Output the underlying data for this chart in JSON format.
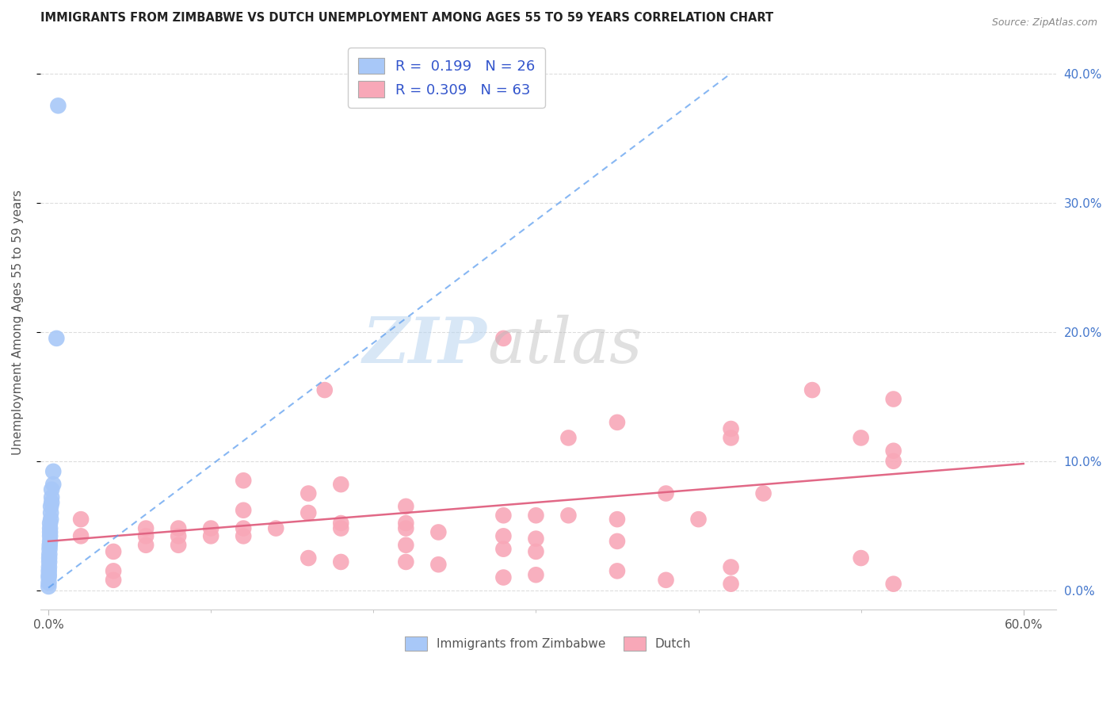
{
  "title": "IMMIGRANTS FROM ZIMBABWE VS DUTCH UNEMPLOYMENT AMONG AGES 55 TO 59 YEARS CORRELATION CHART",
  "source": "Source: ZipAtlas.com",
  "ylabel": "Unemployment Among Ages 55 to 59 years",
  "xlim": [
    -0.005,
    0.62
  ],
  "ylim": [
    -0.015,
    0.43
  ],
  "xticks": [
    0.0,
    0.6
  ],
  "xtick_labels": [
    "0.0%",
    "60.0%"
  ],
  "xticks_minor": [
    0.1,
    0.2,
    0.3,
    0.4,
    0.5
  ],
  "yticks": [
    0.0,
    0.1,
    0.2,
    0.3,
    0.4
  ],
  "ytick_labels_right": [
    "0.0%",
    "10.0%",
    "20.0%",
    "30.0%",
    "40.0%"
  ],
  "legend_blue_label": "R =  0.199   N = 26",
  "legend_pink_label": "R = 0.309   N = 63",
  "legend_bottom_blue": "Immigrants from Zimbabwe",
  "legend_bottom_pink": "Dutch",
  "blue_color": "#a8c8f8",
  "pink_color": "#f8a8b8",
  "blue_line_color": "#5599ee",
  "pink_line_color": "#e06080",
  "watermark_zip": "ZIP",
  "watermark_atlas": "atlas",
  "blue_scatter": [
    [
      0.006,
      0.375
    ],
    [
      0.005,
      0.195
    ],
    [
      0.003,
      0.092
    ],
    [
      0.003,
      0.082
    ],
    [
      0.002,
      0.078
    ],
    [
      0.002,
      0.072
    ],
    [
      0.002,
      0.068
    ],
    [
      0.0015,
      0.065
    ],
    [
      0.0015,
      0.06
    ],
    [
      0.0015,
      0.055
    ],
    [
      0.001,
      0.052
    ],
    [
      0.001,
      0.048
    ],
    [
      0.001,
      0.045
    ],
    [
      0.001,
      0.042
    ],
    [
      0.001,
      0.038
    ],
    [
      0.0008,
      0.035
    ],
    [
      0.0007,
      0.032
    ],
    [
      0.0006,
      0.028
    ],
    [
      0.0005,
      0.025
    ],
    [
      0.0005,
      0.022
    ],
    [
      0.0004,
      0.018
    ],
    [
      0.0003,
      0.015
    ],
    [
      0.0003,
      0.012
    ],
    [
      0.0002,
      0.01
    ],
    [
      0.0002,
      0.006
    ],
    [
      0.0001,
      0.003
    ]
  ],
  "pink_scatter": [
    [
      0.28,
      0.195
    ],
    [
      0.47,
      0.155
    ],
    [
      0.52,
      0.148
    ],
    [
      0.35,
      0.13
    ],
    [
      0.42,
      0.125
    ],
    [
      0.42,
      0.118
    ],
    [
      0.17,
      0.155
    ],
    [
      0.32,
      0.118
    ],
    [
      0.5,
      0.118
    ],
    [
      0.52,
      0.108
    ],
    [
      0.52,
      0.1
    ],
    [
      0.38,
      0.075
    ],
    [
      0.44,
      0.075
    ],
    [
      0.12,
      0.085
    ],
    [
      0.18,
      0.082
    ],
    [
      0.16,
      0.075
    ],
    [
      0.22,
      0.065
    ],
    [
      0.12,
      0.062
    ],
    [
      0.16,
      0.06
    ],
    [
      0.28,
      0.058
    ],
    [
      0.3,
      0.058
    ],
    [
      0.32,
      0.058
    ],
    [
      0.35,
      0.055
    ],
    [
      0.4,
      0.055
    ],
    [
      0.18,
      0.052
    ],
    [
      0.22,
      0.052
    ],
    [
      0.06,
      0.048
    ],
    [
      0.08,
      0.048
    ],
    [
      0.1,
      0.048
    ],
    [
      0.12,
      0.048
    ],
    [
      0.14,
      0.048
    ],
    [
      0.18,
      0.048
    ],
    [
      0.22,
      0.048
    ],
    [
      0.24,
      0.045
    ],
    [
      0.06,
      0.042
    ],
    [
      0.08,
      0.042
    ],
    [
      0.1,
      0.042
    ],
    [
      0.12,
      0.042
    ],
    [
      0.28,
      0.042
    ],
    [
      0.3,
      0.04
    ],
    [
      0.35,
      0.038
    ],
    [
      0.06,
      0.035
    ],
    [
      0.08,
      0.035
    ],
    [
      0.22,
      0.035
    ],
    [
      0.28,
      0.032
    ],
    [
      0.3,
      0.03
    ],
    [
      0.16,
      0.025
    ],
    [
      0.18,
      0.022
    ],
    [
      0.22,
      0.022
    ],
    [
      0.24,
      0.02
    ],
    [
      0.42,
      0.018
    ],
    [
      0.35,
      0.015
    ],
    [
      0.3,
      0.012
    ],
    [
      0.28,
      0.01
    ],
    [
      0.38,
      0.008
    ],
    [
      0.42,
      0.005
    ],
    [
      0.5,
      0.025
    ],
    [
      0.52,
      0.005
    ],
    [
      0.04,
      0.03
    ],
    [
      0.04,
      0.015
    ],
    [
      0.04,
      0.008
    ],
    [
      0.02,
      0.055
    ],
    [
      0.02,
      0.042
    ]
  ],
  "blue_regression": [
    0.0,
    0.002,
    0.42,
    0.4
  ],
  "pink_regression": [
    0.0,
    0.038,
    0.6,
    0.098
  ],
  "grid_color": "#dddddd",
  "background_color": "#ffffff"
}
